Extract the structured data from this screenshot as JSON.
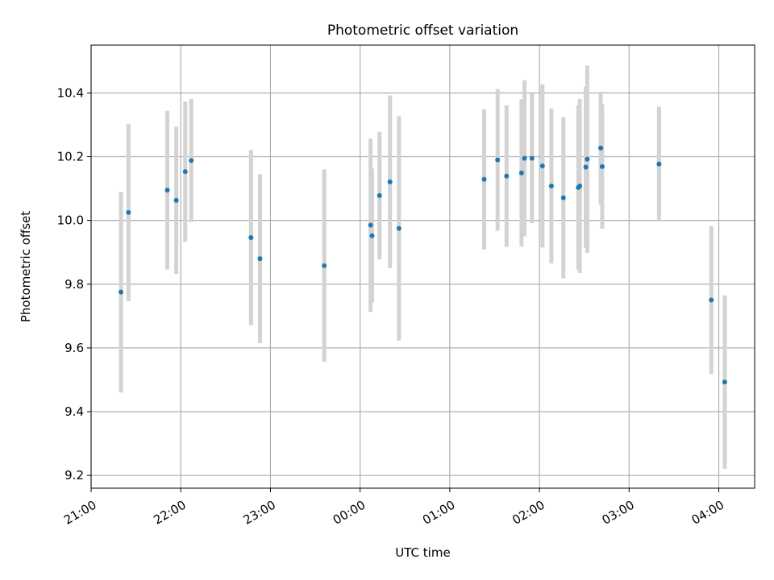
{
  "chart_data": {
    "type": "scatter",
    "title": "Photometric offset variation",
    "xlabel": "UTC time",
    "ylabel": "Photometric offset",
    "x_axis_kind": "time",
    "x_start": "21:00",
    "xlim_hours": [
      21.0,
      28.4
    ],
    "ylim": [
      9.16,
      10.55
    ],
    "x_ticks": [
      "21:00",
      "22:00",
      "23:00",
      "00:00",
      "01:00",
      "02:00",
      "03:00",
      "04:00"
    ],
    "y_ticks": [
      9.2,
      9.4,
      9.6,
      9.8,
      10.0,
      10.2,
      10.4
    ],
    "grid": true,
    "marker_color": "#1f77b4",
    "errorbar_color": "#d3d3d3",
    "points": [
      {
        "time": "21:20",
        "y": 9.775,
        "err": 0.315
      },
      {
        "time": "21:25",
        "y": 10.025,
        "err": 0.278
      },
      {
        "time": "21:51",
        "y": 10.095,
        "err": 0.249
      },
      {
        "time": "21:57",
        "y": 10.063,
        "err": 0.231
      },
      {
        "time": "22:03",
        "y": 10.153,
        "err": 0.22
      },
      {
        "time": "22:07",
        "y": 10.188,
        "err": 0.193
      },
      {
        "time": "22:47",
        "y": 9.946,
        "err": 0.275
      },
      {
        "time": "22:53",
        "y": 9.88,
        "err": 0.265
      },
      {
        "time": "23:36",
        "y": 9.858,
        "err": 0.302
      },
      {
        "time": "00:07",
        "y": 9.985,
        "err": 0.272
      },
      {
        "time": "00:08",
        "y": 9.952,
        "err": 0.21
      },
      {
        "time": "00:13",
        "y": 10.078,
        "err": 0.2
      },
      {
        "time": "00:20",
        "y": 10.121,
        "err": 0.271
      },
      {
        "time": "00:26",
        "y": 9.975,
        "err": 0.352
      },
      {
        "time": "01:23",
        "y": 10.129,
        "err": 0.22
      },
      {
        "time": "01:32",
        "y": 10.19,
        "err": 0.222
      },
      {
        "time": "01:38",
        "y": 10.139,
        "err": 0.222
      },
      {
        "time": "01:48",
        "y": 10.149,
        "err": 0.231
      },
      {
        "time": "01:50",
        "y": 10.195,
        "err": 0.245
      },
      {
        "time": "01:55",
        "y": 10.195,
        "err": 0.204
      },
      {
        "time": "02:02",
        "y": 10.171,
        "err": 0.256
      },
      {
        "time": "02:08",
        "y": 10.108,
        "err": 0.243
      },
      {
        "time": "02:16",
        "y": 10.071,
        "err": 0.253
      },
      {
        "time": "02:26",
        "y": 10.103,
        "err": 0.258
      },
      {
        "time": "02:27",
        "y": 10.108,
        "err": 0.273
      },
      {
        "time": "02:31",
        "y": 10.167,
        "err": 0.253
      },
      {
        "time": "02:32",
        "y": 10.192,
        "err": 0.294
      },
      {
        "time": "02:41",
        "y": 10.227,
        "err": 0.177
      },
      {
        "time": "02:42",
        "y": 10.169,
        "err": 0.195
      },
      {
        "time": "03:20",
        "y": 10.177,
        "err": 0.18
      },
      {
        "time": "03:55",
        "y": 9.75,
        "err": 0.232
      },
      {
        "time": "04:04",
        "y": 9.493,
        "err": 0.272
      }
    ]
  }
}
